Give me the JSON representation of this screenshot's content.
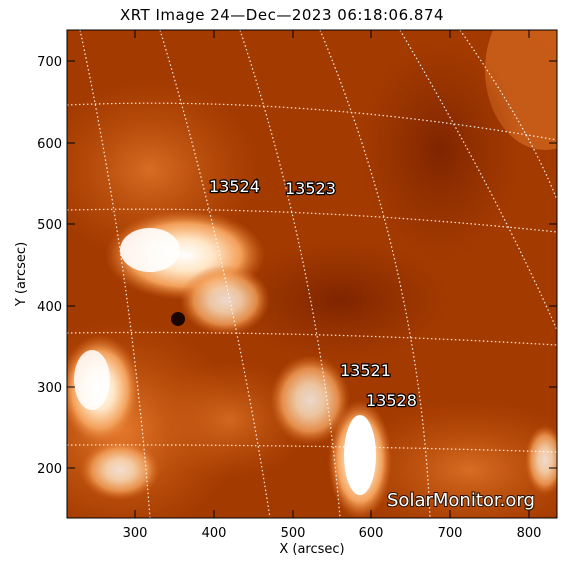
{
  "title": "XRT Image 24—Dec—2023 06:18:06.874",
  "x_axis": {
    "label": "X (arcsec)",
    "ticks": [
      "300",
      "400",
      "500",
      "600",
      "700",
      "800"
    ]
  },
  "y_axis": {
    "label": "Y (arcsec)",
    "ticks": [
      "700",
      "600",
      "500",
      "400",
      "300",
      "200"
    ]
  },
  "regions": [
    "13524",
    "13523",
    "13521",
    "13528"
  ],
  "watermark": "SolarMonitor.org",
  "colors": {
    "plot_bg": "#a33a00",
    "frame": "#000000",
    "grid": "#ffffff"
  }
}
